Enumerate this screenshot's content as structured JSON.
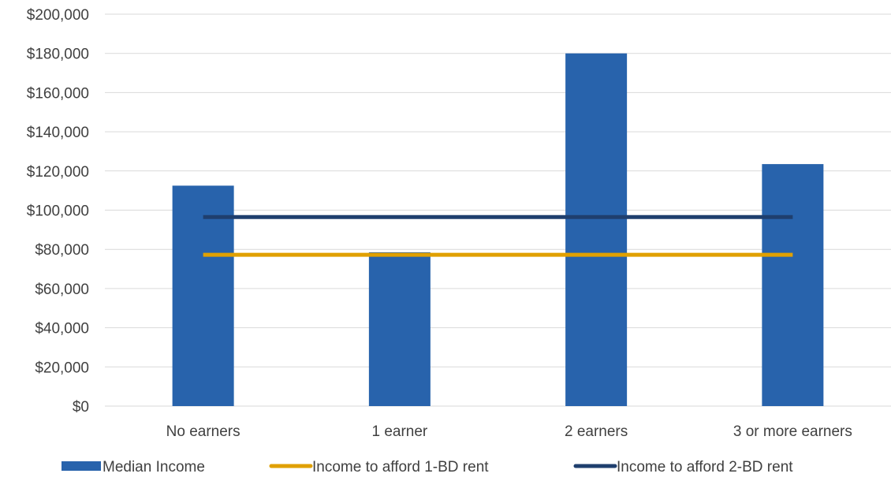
{
  "chart_data": {
    "type": "bar",
    "categories": [
      "No earners",
      "1 earner",
      "2 earners",
      "3 or more earners"
    ],
    "series": [
      {
        "name": "Median Income",
        "type": "bar",
        "values": [
          112500,
          78500,
          180000,
          123500
        ],
        "color": "#2863ac"
      },
      {
        "name": "Income to afford 1-BD rent",
        "type": "line",
        "values": [
          77200,
          77200,
          77200,
          77200
        ],
        "color": "#e0a000"
      },
      {
        "name": "Income to afford 2-BD rent",
        "type": "line",
        "values": [
          96500,
          96500,
          96500,
          96500
        ],
        "color": "#1f3f6e"
      }
    ],
    "ylim": [
      0,
      200000
    ],
    "yticks": [
      0,
      20000,
      40000,
      60000,
      80000,
      100000,
      120000,
      140000,
      160000,
      180000,
      200000
    ],
    "ytick_labels": [
      "$0",
      "$20,000",
      "$40,000",
      "$60,000",
      "$80,000",
      "$100,000",
      "$120,000",
      "$140,000",
      "$160,000",
      "$180,000",
      "$200,000"
    ],
    "grid": true,
    "legend_position": "bottom",
    "gridline_color": "#d9d9d9"
  }
}
